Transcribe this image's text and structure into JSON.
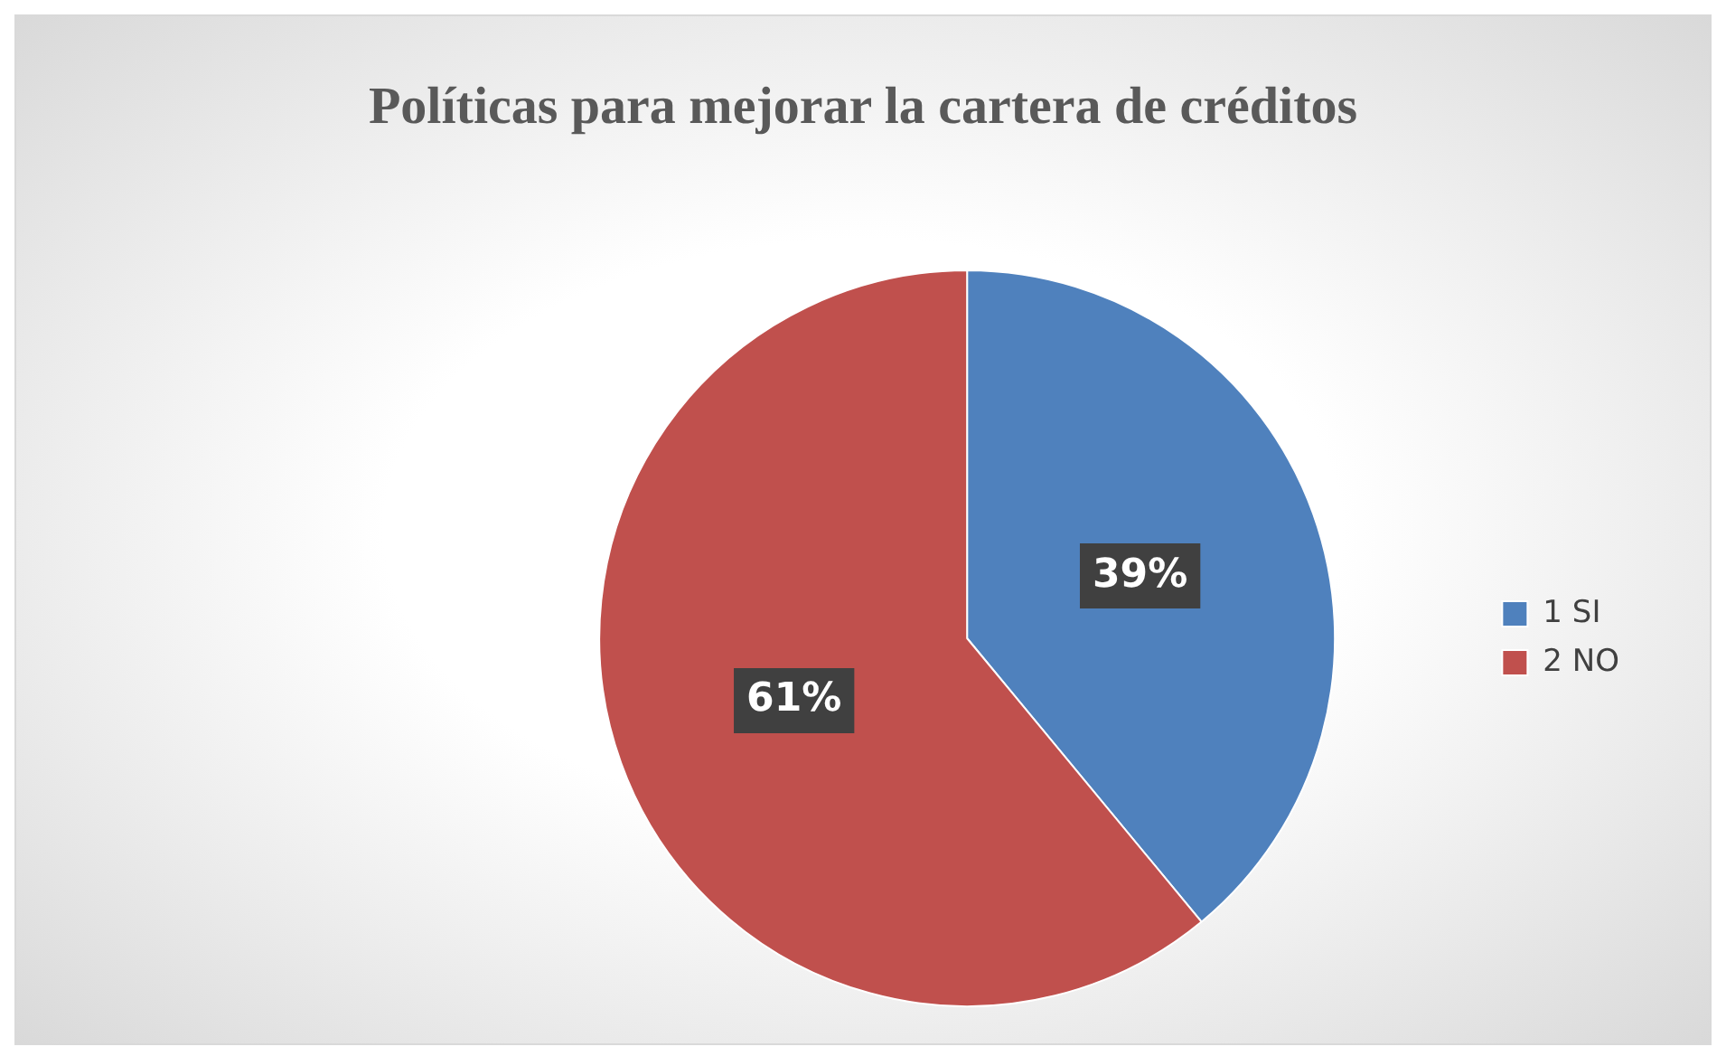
{
  "chart_data": {
    "type": "pie",
    "title": "Políticas para mejorar la cartera de créditos",
    "categories": [
      "1 SI",
      "2 NO"
    ],
    "values": [
      39,
      61
    ],
    "colors": [
      "#4f81bd",
      "#c0504d"
    ],
    "value_labels": [
      "39%",
      "61%"
    ],
    "legend": "right"
  }
}
